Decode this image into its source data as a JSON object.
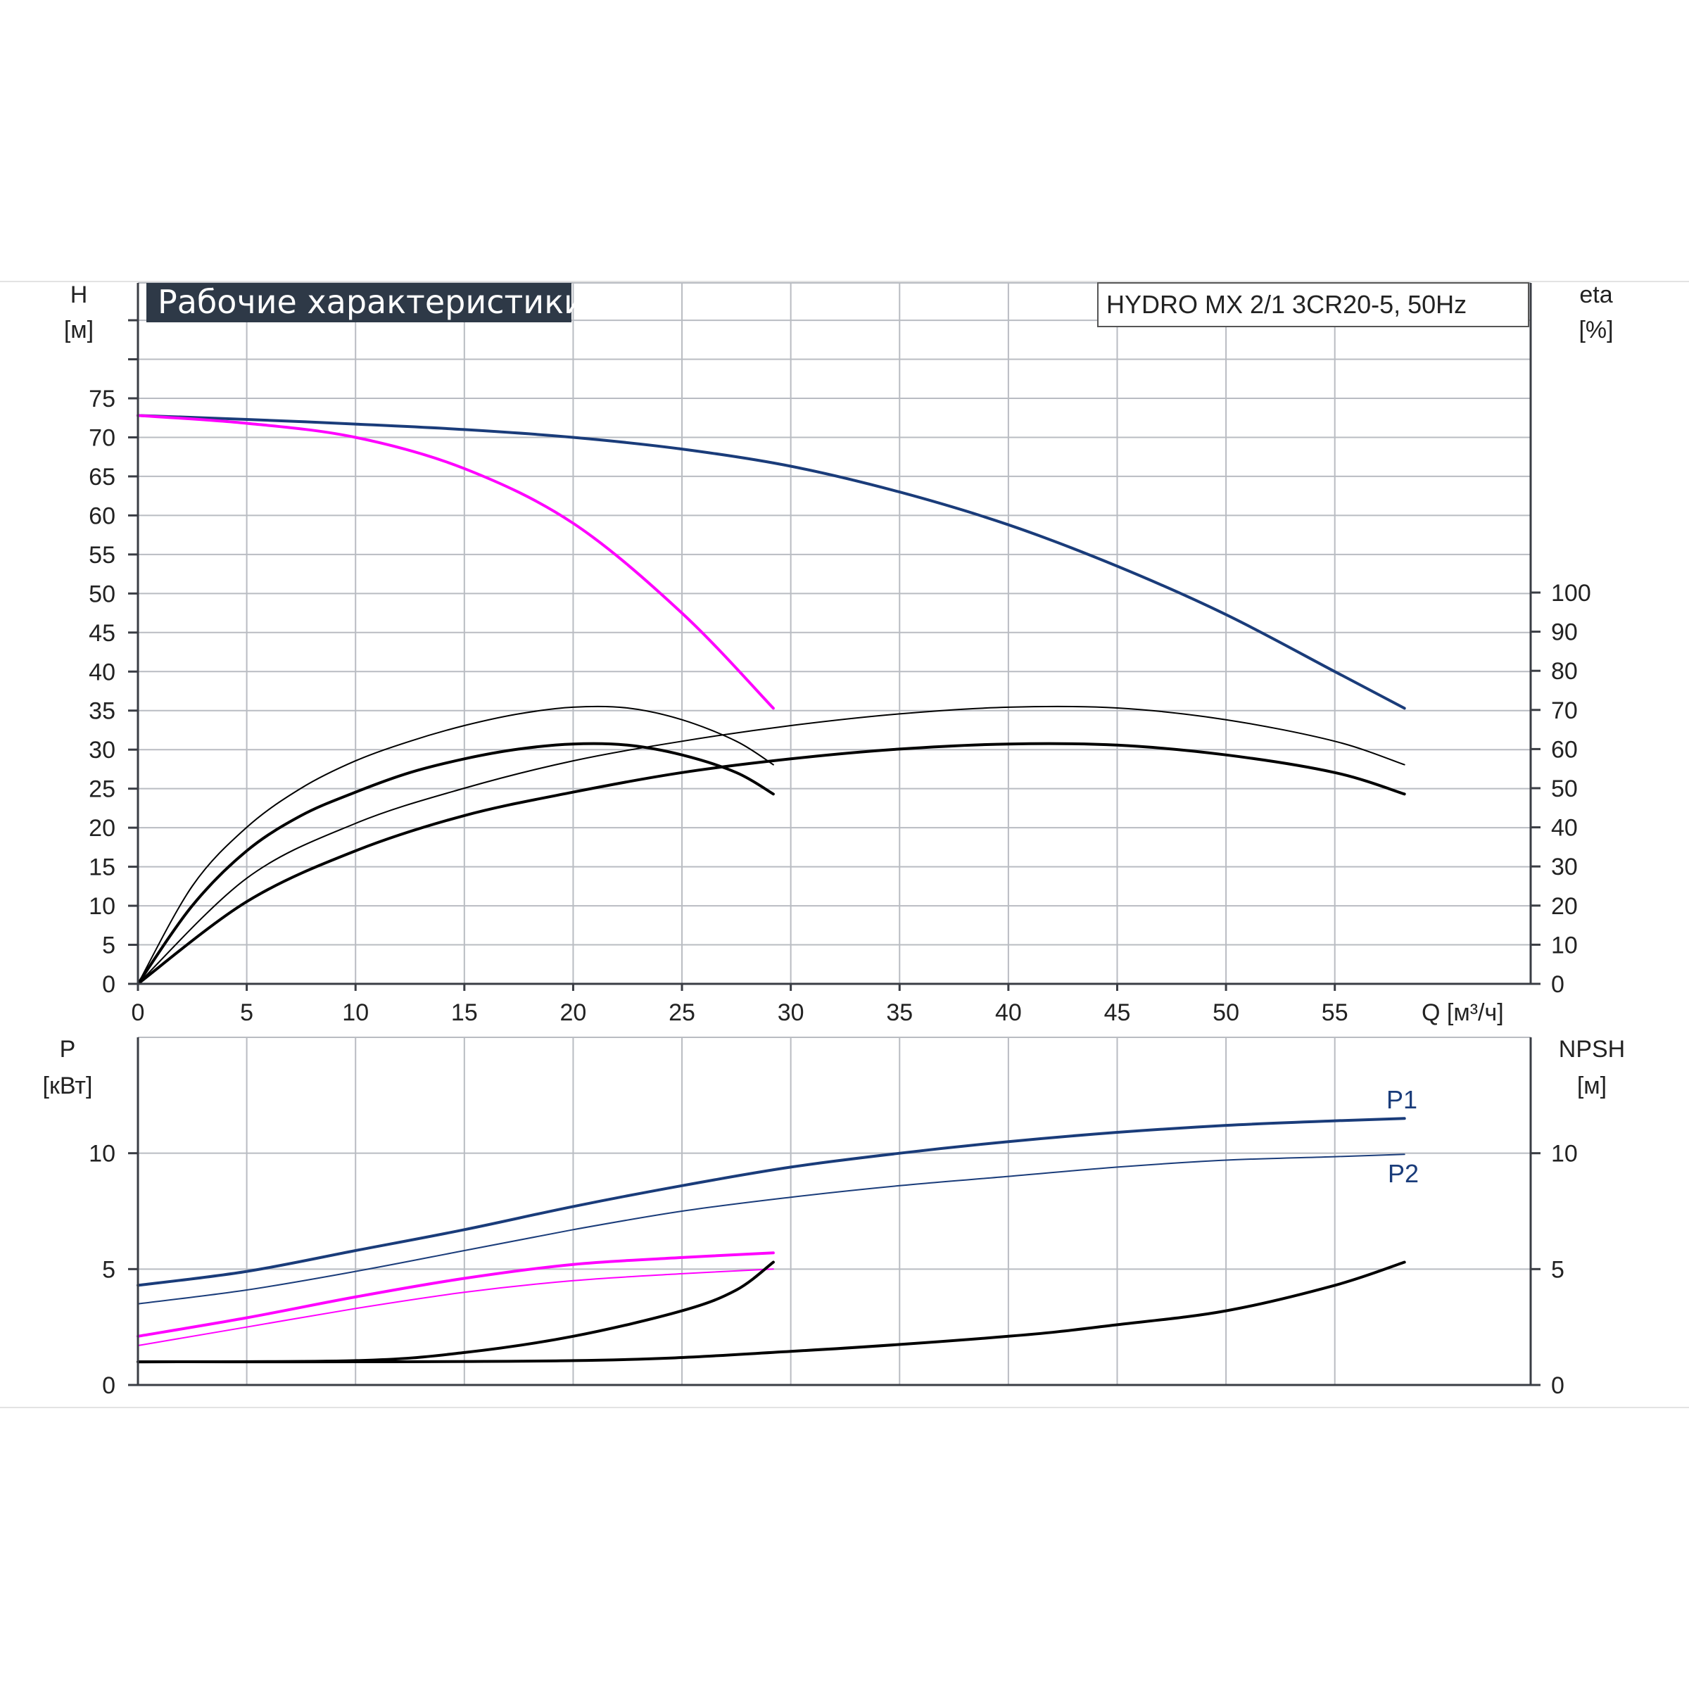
{
  "chart_data": [
    {
      "type": "line",
      "title": "Рабочие характеристики",
      "model": "HYDRO MX 2/1 3CR20-5, 50Hz",
      "xlabel": "Q [м³/ч]",
      "ylabel_left": [
        "H",
        "[м]"
      ],
      "ylabel_right": [
        "eta",
        "[%]"
      ],
      "xlim": [
        0,
        64
      ],
      "ylim_left": [
        0,
        75
      ],
      "ylim_right": [
        0,
        100
      ],
      "xticks": [
        0,
        5,
        10,
        15,
        20,
        25,
        30,
        35,
        40,
        45,
        50,
        55
      ],
      "yticks_left": [
        0,
        5,
        10,
        15,
        20,
        25,
        30,
        35,
        40,
        45,
        50,
        55,
        60,
        65,
        70,
        75
      ],
      "yticks_right": [
        0,
        10,
        20,
        30,
        40,
        50,
        60,
        70,
        80,
        90,
        100
      ],
      "grid": true,
      "series": [
        {
          "color": "#1a3c7a",
          "axis": "left",
          "x": [
            0,
            5,
            10,
            15,
            20,
            25,
            30,
            35,
            40,
            45,
            50,
            55,
            58.2
          ],
          "y": [
            72.8,
            72.3,
            71.7,
            71.0,
            70.0,
            68.5,
            66.3,
            63.0,
            58.8,
            53.5,
            47.3,
            40.0,
            35.3
          ]
        },
        {
          "color": "#ff00ff",
          "axis": "left",
          "x": [
            0,
            5,
            10,
            15,
            20,
            25,
            29.2
          ],
          "y": [
            72.8,
            71.8,
            70.0,
            66.0,
            59.0,
            47.5,
            35.3
          ]
        },
        {
          "color": "#000000",
          "axis": "right",
          "x": [
            0,
            2.5,
            5,
            7.5,
            10,
            12.5,
            15,
            17.5,
            20,
            22.5,
            25,
            27.5,
            29.2
          ],
          "y": [
            0,
            25,
            40,
            50,
            57,
            62,
            66,
            69,
            70.7,
            70.5,
            67.5,
            62,
            56
          ]
        },
        {
          "color": "#000000",
          "axis": "right",
          "x": [
            0,
            2.5,
            5,
            7.5,
            10,
            12.5,
            15,
            17.5,
            20,
            22.5,
            25,
            27.5,
            29.2
          ],
          "y": [
            0,
            20,
            34,
            43,
            49,
            54,
            57.5,
            60,
            61.3,
            61,
            58.5,
            54,
            48.5
          ]
        },
        {
          "color": "#000000",
          "axis": "right",
          "x": [
            0,
            5,
            10,
            15,
            20,
            25,
            30,
            35,
            40,
            45,
            50,
            55,
            58.2
          ],
          "y": [
            0,
            27,
            41,
            50,
            57,
            62,
            66,
            69,
            70.7,
            70.5,
            67.5,
            62,
            56
          ]
        },
        {
          "color": "#000000",
          "axis": "right",
          "x": [
            0,
            5,
            10,
            15,
            20,
            25,
            30,
            35,
            40,
            45,
            50,
            55,
            58.2
          ],
          "y": [
            0,
            21,
            34,
            43,
            49,
            54,
            57.5,
            60,
            61.3,
            61,
            58.5,
            54,
            48.5
          ]
        }
      ]
    },
    {
      "type": "line",
      "ylabel_left": [
        "P",
        "[кВт]"
      ],
      "ylabel_right": [
        "NPSH",
        "[м]"
      ],
      "xlim": [
        0,
        64
      ],
      "ylim_left": [
        0,
        15
      ],
      "ylim_right": [
        0,
        15
      ],
      "yticks_left": [
        0,
        5,
        10
      ],
      "yticks_right": [
        0,
        5,
        10
      ],
      "grid": true,
      "series": [
        {
          "name": "P1",
          "color": "#1a3c7a",
          "axis": "left",
          "x": [
            0,
            5,
            10,
            15,
            20,
            25,
            30,
            35,
            40,
            45,
            50,
            55,
            58.2
          ],
          "y": [
            4.3,
            4.9,
            5.8,
            6.7,
            7.7,
            8.6,
            9.4,
            10.0,
            10.5,
            10.9,
            11.2,
            11.4,
            11.5
          ]
        },
        {
          "name": "P2",
          "color": "#1a3c7a",
          "axis": "left",
          "x": [
            0,
            5,
            10,
            15,
            20,
            25,
            30,
            35,
            40,
            45,
            50,
            55,
            58.2
          ],
          "y": [
            3.5,
            4.1,
            4.9,
            5.8,
            6.7,
            7.5,
            8.1,
            8.6,
            9.0,
            9.4,
            9.7,
            9.85,
            9.95
          ]
        },
        {
          "color": "#ff00ff",
          "axis": "left",
          "x": [
            0,
            5,
            10,
            15,
            20,
            25,
            29.2
          ],
          "y": [
            2.1,
            2.9,
            3.8,
            4.6,
            5.2,
            5.5,
            5.7
          ]
        },
        {
          "color": "#ff00ff",
          "axis": "left",
          "x": [
            0,
            5,
            10,
            15,
            20,
            25,
            29.2
          ],
          "y": [
            1.7,
            2.5,
            3.3,
            4.0,
            4.5,
            4.8,
            5.0
          ]
        },
        {
          "color": "#000000",
          "axis": "right",
          "x": [
            0,
            10,
            15,
            20,
            25,
            27.5,
            29.2
          ],
          "y": [
            1.0,
            1.05,
            1.4,
            2.1,
            3.2,
            4.1,
            5.3
          ]
        },
        {
          "color": "#000000",
          "axis": "right",
          "x": [
            0,
            20,
            30,
            40,
            45,
            50,
            55,
            58.2
          ],
          "y": [
            1.0,
            1.05,
            1.45,
            2.1,
            2.6,
            3.2,
            4.3,
            5.3
          ]
        }
      ]
    }
  ]
}
